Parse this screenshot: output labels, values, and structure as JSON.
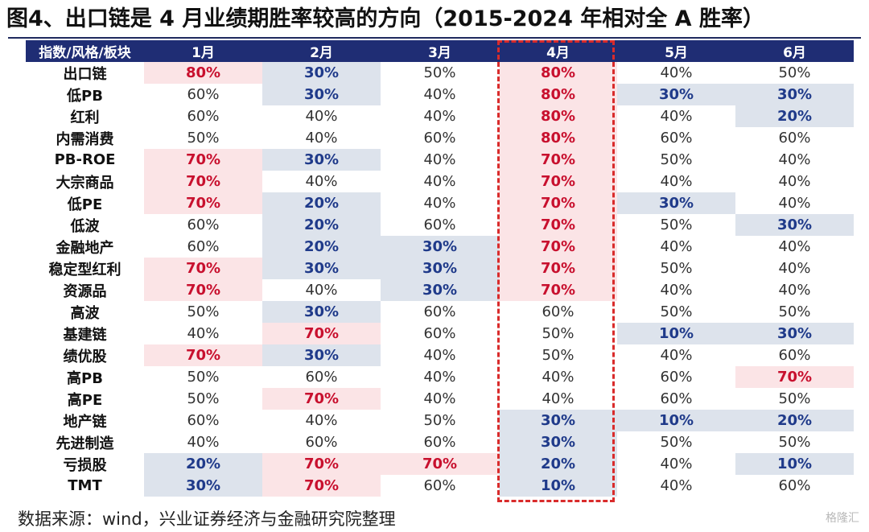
{
  "title": "图4、出口链是 4 月业绩期胜率较高的方向（2015-2024 年相对全 A 胜率）",
  "source": "数据来源：wind，兴业证券经济与金融研究院整理",
  "watermark": "格隆汇",
  "colors": {
    "header_bg": "#1f2d74",
    "high_bg": "#fbe4e6",
    "high_text": "#c8102e",
    "low_bg": "#dde3ec",
    "low_text": "#1f3a8a",
    "highlight_border": "#d92b2b"
  },
  "chart_data": {
    "type": "table",
    "title": "图4、出口链是 4 月业绩期胜率较高的方向（2015-2024 年相对全 A 胜率）",
    "corner_header": "指数/风格/板块",
    "columns": [
      "1月",
      "2月",
      "3月",
      "4月",
      "5月",
      "6月"
    ],
    "highlighted_column": "4月",
    "rows": [
      {
        "name": "出口链",
        "values": [
          "80%",
          "30%",
          "50%",
          "80%",
          "40%",
          "50%"
        ]
      },
      {
        "name": "低PB",
        "values": [
          "60%",
          "30%",
          "40%",
          "80%",
          "30%",
          "30%"
        ]
      },
      {
        "name": "红利",
        "values": [
          "60%",
          "40%",
          "40%",
          "80%",
          "40%",
          "20%"
        ]
      },
      {
        "name": "内需消费",
        "values": [
          "50%",
          "40%",
          "60%",
          "80%",
          "60%",
          "60%"
        ]
      },
      {
        "name": "PB-ROE",
        "values": [
          "70%",
          "30%",
          "40%",
          "70%",
          "50%",
          "40%"
        ]
      },
      {
        "name": "大宗商品",
        "values": [
          "70%",
          "40%",
          "40%",
          "70%",
          "40%",
          "40%"
        ]
      },
      {
        "name": "低PE",
        "values": [
          "70%",
          "20%",
          "40%",
          "70%",
          "30%",
          "40%"
        ]
      },
      {
        "name": "低波",
        "values": [
          "60%",
          "20%",
          "60%",
          "70%",
          "50%",
          "30%"
        ]
      },
      {
        "name": "金融地产",
        "values": [
          "60%",
          "20%",
          "30%",
          "70%",
          "40%",
          "40%"
        ]
      },
      {
        "name": "稳定型红利",
        "values": [
          "70%",
          "30%",
          "30%",
          "70%",
          "50%",
          "40%"
        ]
      },
      {
        "name": "资源品",
        "values": [
          "70%",
          "40%",
          "30%",
          "70%",
          "40%",
          "40%"
        ]
      },
      {
        "name": "高波",
        "values": [
          "50%",
          "30%",
          "60%",
          "60%",
          "50%",
          "50%"
        ]
      },
      {
        "name": "基建链",
        "values": [
          "40%",
          "70%",
          "60%",
          "50%",
          "10%",
          "30%"
        ]
      },
      {
        "name": "绩优股",
        "values": [
          "70%",
          "30%",
          "40%",
          "50%",
          "40%",
          "60%"
        ]
      },
      {
        "name": "高PB",
        "values": [
          "50%",
          "60%",
          "40%",
          "40%",
          "60%",
          "70%"
        ]
      },
      {
        "name": "高PE",
        "values": [
          "50%",
          "70%",
          "40%",
          "40%",
          "60%",
          "50%"
        ]
      },
      {
        "name": "地产链",
        "values": [
          "60%",
          "40%",
          "50%",
          "30%",
          "10%",
          "20%"
        ]
      },
      {
        "name": "先进制造",
        "values": [
          "40%",
          "60%",
          "60%",
          "30%",
          "50%",
          "50%"
        ]
      },
      {
        "name": "亏损股",
        "values": [
          "20%",
          "70%",
          "70%",
          "20%",
          "40%",
          "10%"
        ]
      },
      {
        "name": "TMT",
        "values": [
          "30%",
          "70%",
          "60%",
          "10%",
          "40%",
          "60%"
        ]
      }
    ]
  }
}
